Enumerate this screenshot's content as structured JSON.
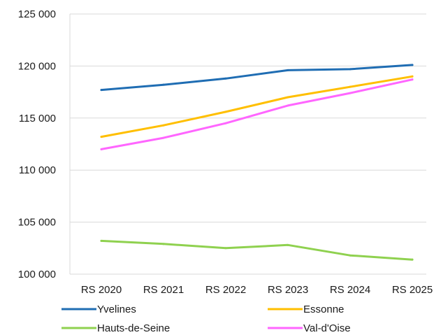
{
  "chart_data": {
    "type": "line",
    "title": "",
    "xlabel": "",
    "ylabel": "",
    "categories": [
      "RS 2020",
      "RS 2021",
      "RS 2022",
      "RS 2023",
      "RS 2024",
      "RS 2025"
    ],
    "ylim": [
      100000,
      125000
    ],
    "yticks": [
      100000,
      105000,
      110000,
      115000,
      120000,
      125000
    ],
    "ytick_labels": [
      "100 000",
      "105 000",
      "110 000",
      "115 000",
      "120 000",
      "125 000"
    ],
    "grid": true,
    "legend_position": "bottom",
    "series": [
      {
        "name": "Yvelines",
        "color": "#1f6db3",
        "values": [
          117700,
          118200,
          118800,
          119600,
          119700,
          120100
        ]
      },
      {
        "name": "Essonne",
        "color": "#ffbf00",
        "values": [
          113200,
          114300,
          115600,
          117000,
          118000,
          119000
        ]
      },
      {
        "name": "Hauts-de-Seine",
        "color": "#8fd14f",
        "values": [
          103200,
          102900,
          102500,
          102800,
          101800,
          101400
        ]
      },
      {
        "name": "Val-d'Oise",
        "color": "#ff66ff",
        "values": [
          112000,
          113100,
          114500,
          116200,
          117400,
          118700
        ]
      }
    ]
  }
}
